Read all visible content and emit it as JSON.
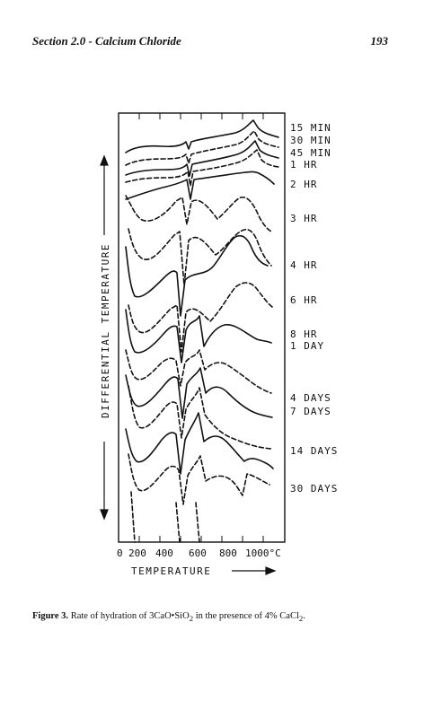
{
  "header": {
    "section_title": "Section 2.0 - Calcium Chloride",
    "page_number": "193"
  },
  "figure": {
    "y_axis_label": "DIFFERENTIAL TEMPERATURE",
    "x_axis_label": "TEMPERATURE",
    "x_tick_labels": [
      "0",
      "200",
      "400",
      "600",
      "800",
      "1000°C"
    ],
    "curve_labels": [
      "15 MIN",
      "30 MIN",
      "45 MIN",
      "1 HR",
      "2 HR",
      "3 HR",
      "4 HR",
      "6 HR",
      "8 HR",
      "1 DAY",
      "4 DAYS",
      "7 DAYS",
      "14 DAYS",
      "30 DAYS"
    ]
  },
  "caption": {
    "label": "Figure 3.",
    "text_before": " Rate of hydration of 3CaO•SiO",
    "sub_1": "2",
    "text_middle": " in the presence of 4% CaCl",
    "sub_2": "2",
    "text_after": "."
  }
}
